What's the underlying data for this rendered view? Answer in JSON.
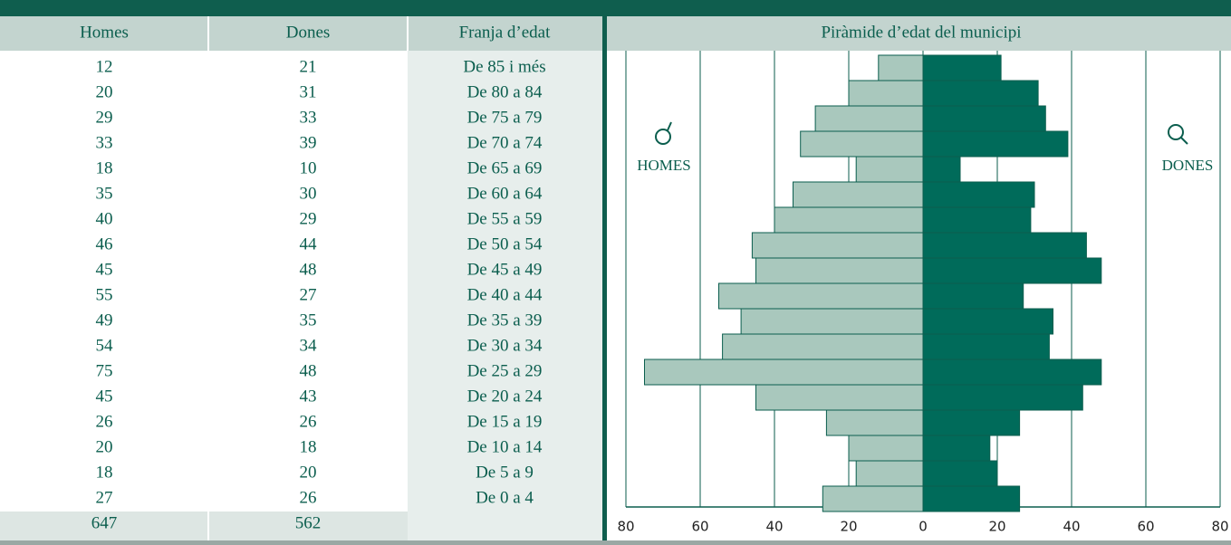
{
  "table": {
    "age_header": "Franja d’edat",
    "totals": [
      647,
      562
    ]
  },
  "chart_data": {
    "type": "pyramid",
    "title": "Piràmide d’edat del municipi",
    "categories": [
      "De 85 i més",
      "De 80 a 84",
      "De 75 a 79",
      "De 70 a 74",
      "De 65 a 69",
      "De 60 a 64",
      "De 55 a 59",
      "De 50 a 54",
      "De 45 a 49",
      "De 40 a 44",
      "De 35 a 39",
      "De 30 a 34",
      "De 25 a 29",
      "De 20 a 24",
      "De 15 a 19",
      "De 10 a 14",
      "De 5 a 9",
      "De 0 a 4"
    ],
    "series": [
      {
        "name": "Homes",
        "label": "HOMES",
        "color": "#a9c8bd",
        "values": [
          12,
          20,
          29,
          33,
          18,
          35,
          40,
          46,
          45,
          55,
          49,
          54,
          75,
          45,
          26,
          20,
          18,
          27
        ]
      },
      {
        "name": "Dones",
        "label": "DONES",
        "color": "#006b5a",
        "values": [
          21,
          31,
          33,
          39,
          10,
          30,
          29,
          44,
          48,
          27,
          35,
          34,
          48,
          43,
          26,
          18,
          20,
          26
        ]
      }
    ],
    "xlim": [
      -80,
      80
    ],
    "xticks": [
      {
        "value": -80,
        "label": "80"
      },
      {
        "value": -60,
        "label": "60"
      },
      {
        "value": -40,
        "label": "40"
      },
      {
        "value": -20,
        "label": "20"
      },
      0,
      20,
      40,
      60,
      80
    ],
    "grid": true
  }
}
